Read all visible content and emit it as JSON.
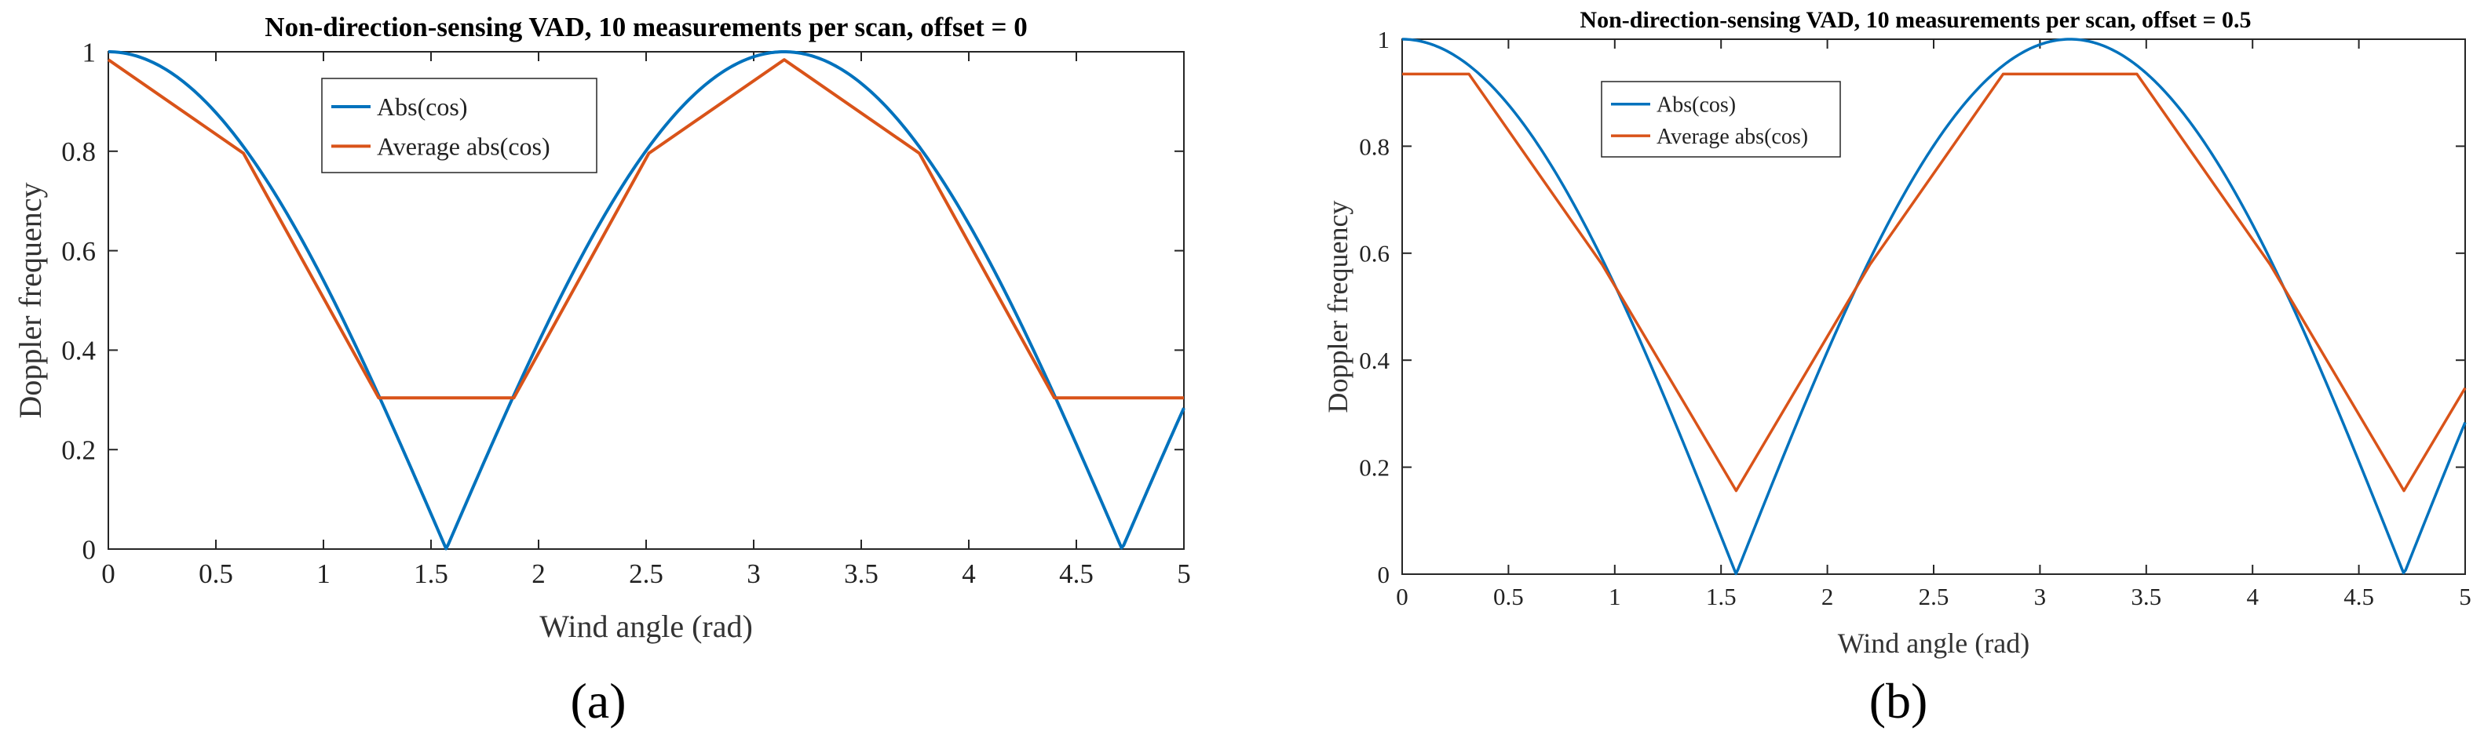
{
  "chart_data": [
    {
      "type": "line",
      "panel_label": "(a)",
      "title": "Non-direction-sensing VAD, 10 measurements per scan, offset = 0",
      "xlabel": "Wind angle (rad)",
      "ylabel": "Doppler frequency",
      "xlim": [
        0,
        5
      ],
      "ylim": [
        0,
        1
      ],
      "xticks": [
        0,
        0.5,
        1,
        1.5,
        2,
        2.5,
        3,
        3.5,
        4,
        4.5,
        5
      ],
      "xtick_labels": [
        "0",
        "0.5",
        "1",
        "1.5",
        "2",
        "2.5",
        "3",
        "3.5",
        "4",
        "4.5",
        "5"
      ],
      "yticks": [
        0,
        0.2,
        0.4,
        0.6,
        0.8,
        1
      ],
      "ytick_labels": [
        "0",
        "0.2",
        "0.4",
        "0.6",
        "0.8",
        "1"
      ],
      "legend": "top-left",
      "series": [
        {
          "name": "Abs(cos)",
          "color": "#0072BD",
          "function": "abs_cos"
        },
        {
          "name": "Average abs(cos)",
          "color": "#D95319",
          "x": [
            0,
            0.628,
            1.257,
            1.885,
            2.513,
            3.142,
            3.77,
            4.398,
            5.0
          ],
          "y": [
            0.984,
            0.796,
            0.304,
            0.304,
            0.796,
            0.984,
            0.796,
            0.304,
            0.304
          ]
        }
      ]
    },
    {
      "type": "line",
      "panel_label": "(b)",
      "title": "Non-direction-sensing VAD, 10 measurements per scan, offset = 0.5",
      "xlabel": "Wind angle (rad)",
      "ylabel": "Doppler frequency",
      "xlim": [
        0,
        5
      ],
      "ylim": [
        0,
        1
      ],
      "xticks": [
        0,
        0.5,
        1,
        1.5,
        2,
        2.5,
        3,
        3.5,
        4,
        4.5,
        5
      ],
      "xtick_labels": [
        "0",
        "0.5",
        "1",
        "1.5",
        "2",
        "2.5",
        "3",
        "3.5",
        "4",
        "4.5",
        "5"
      ],
      "yticks": [
        0,
        0.2,
        0.4,
        0.6,
        0.8,
        1
      ],
      "ytick_labels": [
        "0",
        "0.2",
        "0.4",
        "0.6",
        "0.8",
        "1"
      ],
      "legend": "top-left",
      "series": [
        {
          "name": "Abs(cos)",
          "color": "#0072BD",
          "function": "abs_cos"
        },
        {
          "name": "Average abs(cos)",
          "color": "#D95319",
          "x": [
            0,
            0.314,
            0.942,
            1.571,
            2.199,
            2.827,
            3.456,
            4.084,
            4.712,
            5.0
          ],
          "y": [
            0.935,
            0.935,
            0.578,
            0.156,
            0.578,
            0.935,
            0.935,
            0.578,
            0.156,
            0.348
          ]
        }
      ]
    }
  ]
}
